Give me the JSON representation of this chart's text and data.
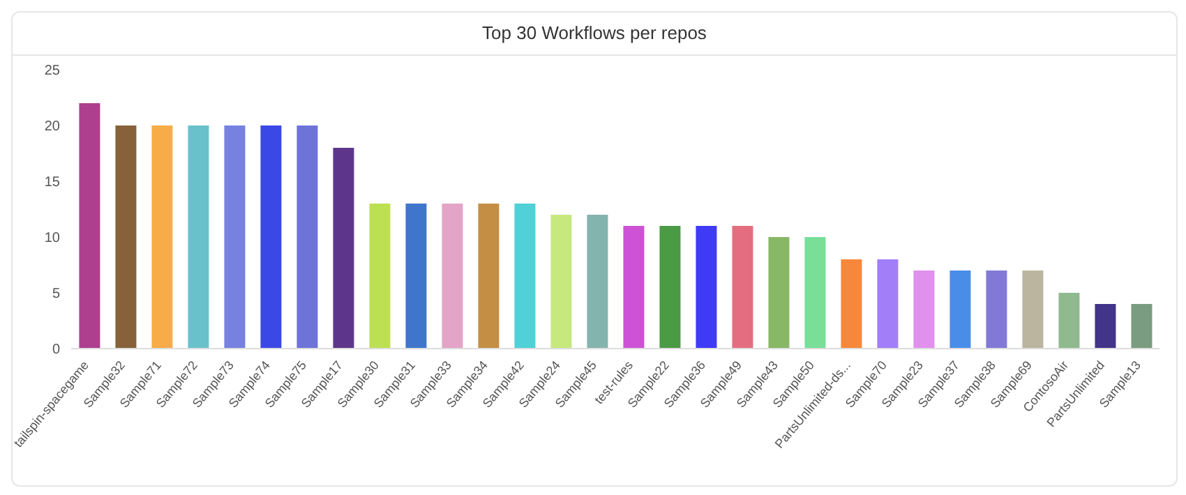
{
  "chart_data": {
    "type": "bar",
    "title": "Top 30 Workflows per repos",
    "categories": [
      "tailspin-spacegame",
      "Sample32",
      "Sample71",
      "Sample72",
      "Sample73",
      "Sample74",
      "Sample75",
      "Sample17",
      "Sample30",
      "Sample31",
      "Sample33",
      "Sample34",
      "Sample42",
      "Sample24",
      "Sample45",
      "test-rules",
      "Sample22",
      "Sample36",
      "Sample49",
      "Sample43",
      "Sample50",
      "PartsUnlimited-ds...",
      "Sample70",
      "Sample23",
      "Sample37",
      "Sample38",
      "Sample69",
      "ContosoAir",
      "PartsUnlimited",
      "Sample13"
    ],
    "values": [
      22,
      20,
      20,
      20,
      20,
      20,
      20,
      18,
      13,
      13,
      13,
      13,
      13,
      12,
      12,
      11,
      11,
      11,
      11,
      10,
      10,
      8,
      8,
      7,
      7,
      7,
      7,
      5,
      4,
      4
    ],
    "colors": [
      "#ad3f8e",
      "#86613a",
      "#f8ac48",
      "#69c1cc",
      "#7681e0",
      "#3a49e6",
      "#6e73da",
      "#5d368b",
      "#bde052",
      "#3f76cc",
      "#e3a4c7",
      "#c48f44",
      "#50d0d7",
      "#c7e87c",
      "#84b4ae",
      "#cd52d5",
      "#4b9a44",
      "#3f3af5",
      "#e46e80",
      "#88b866",
      "#78de98",
      "#f7873a",
      "#a27ef8",
      "#e190ee",
      "#4a8de8",
      "#8279d6",
      "#bbb5a0",
      "#8fba8e",
      "#423489",
      "#7a9c80"
    ],
    "ylim": [
      0,
      25
    ],
    "yticks": [
      0,
      5,
      10,
      15,
      20,
      25
    ],
    "grid": false,
    "legend": false
  }
}
